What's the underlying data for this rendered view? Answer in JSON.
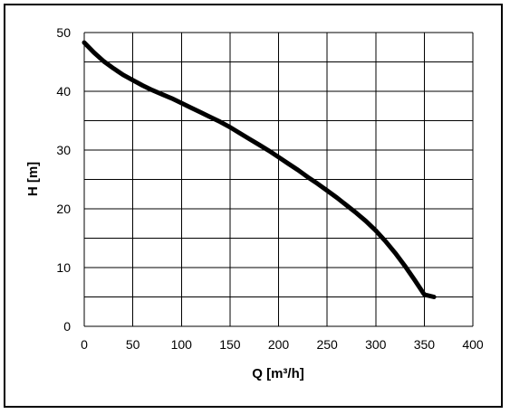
{
  "chart_data": {
    "type": "line",
    "title": "",
    "xlabel": "Q [m³/h]",
    "ylabel": "H [m]",
    "xlim": [
      0,
      400
    ],
    "ylim": [
      0,
      50
    ],
    "x_ticks": [
      "0",
      "50",
      "100",
      "150",
      "200",
      "250",
      "300",
      "350",
      "400"
    ],
    "y_ticks": [
      "0",
      "10",
      "20",
      "30",
      "40",
      "50"
    ],
    "x_tick_values": [
      0,
      50,
      100,
      150,
      200,
      250,
      300,
      350,
      400
    ],
    "y_tick_values": [
      0,
      10,
      20,
      30,
      40,
      50
    ],
    "grid": true,
    "y_minor_grid_step": 5,
    "legend": "none",
    "series": [
      {
        "color": "#000000",
        "x": [
          0,
          10,
          20,
          30,
          40,
          50,
          60,
          70,
          80,
          90,
          100,
          110,
          120,
          130,
          140,
          150,
          160,
          170,
          180,
          190,
          200,
          210,
          220,
          230,
          240,
          250,
          260,
          270,
          280,
          290,
          300,
          310,
          320,
          330,
          340,
          350,
          360
        ],
        "y": [
          48.3,
          46.6,
          45.1,
          43.9,
          42.8,
          41.9,
          41.0,
          40.2,
          39.5,
          38.8,
          38.0,
          37.2,
          36.4,
          35.6,
          34.8,
          33.9,
          32.9,
          31.9,
          30.9,
          29.9,
          28.8,
          27.7,
          26.6,
          25.4,
          24.3,
          23.1,
          21.9,
          20.6,
          19.3,
          17.9,
          16.3,
          14.5,
          12.5,
          10.3,
          7.9,
          5.4,
          5.0
        ]
      }
    ]
  }
}
